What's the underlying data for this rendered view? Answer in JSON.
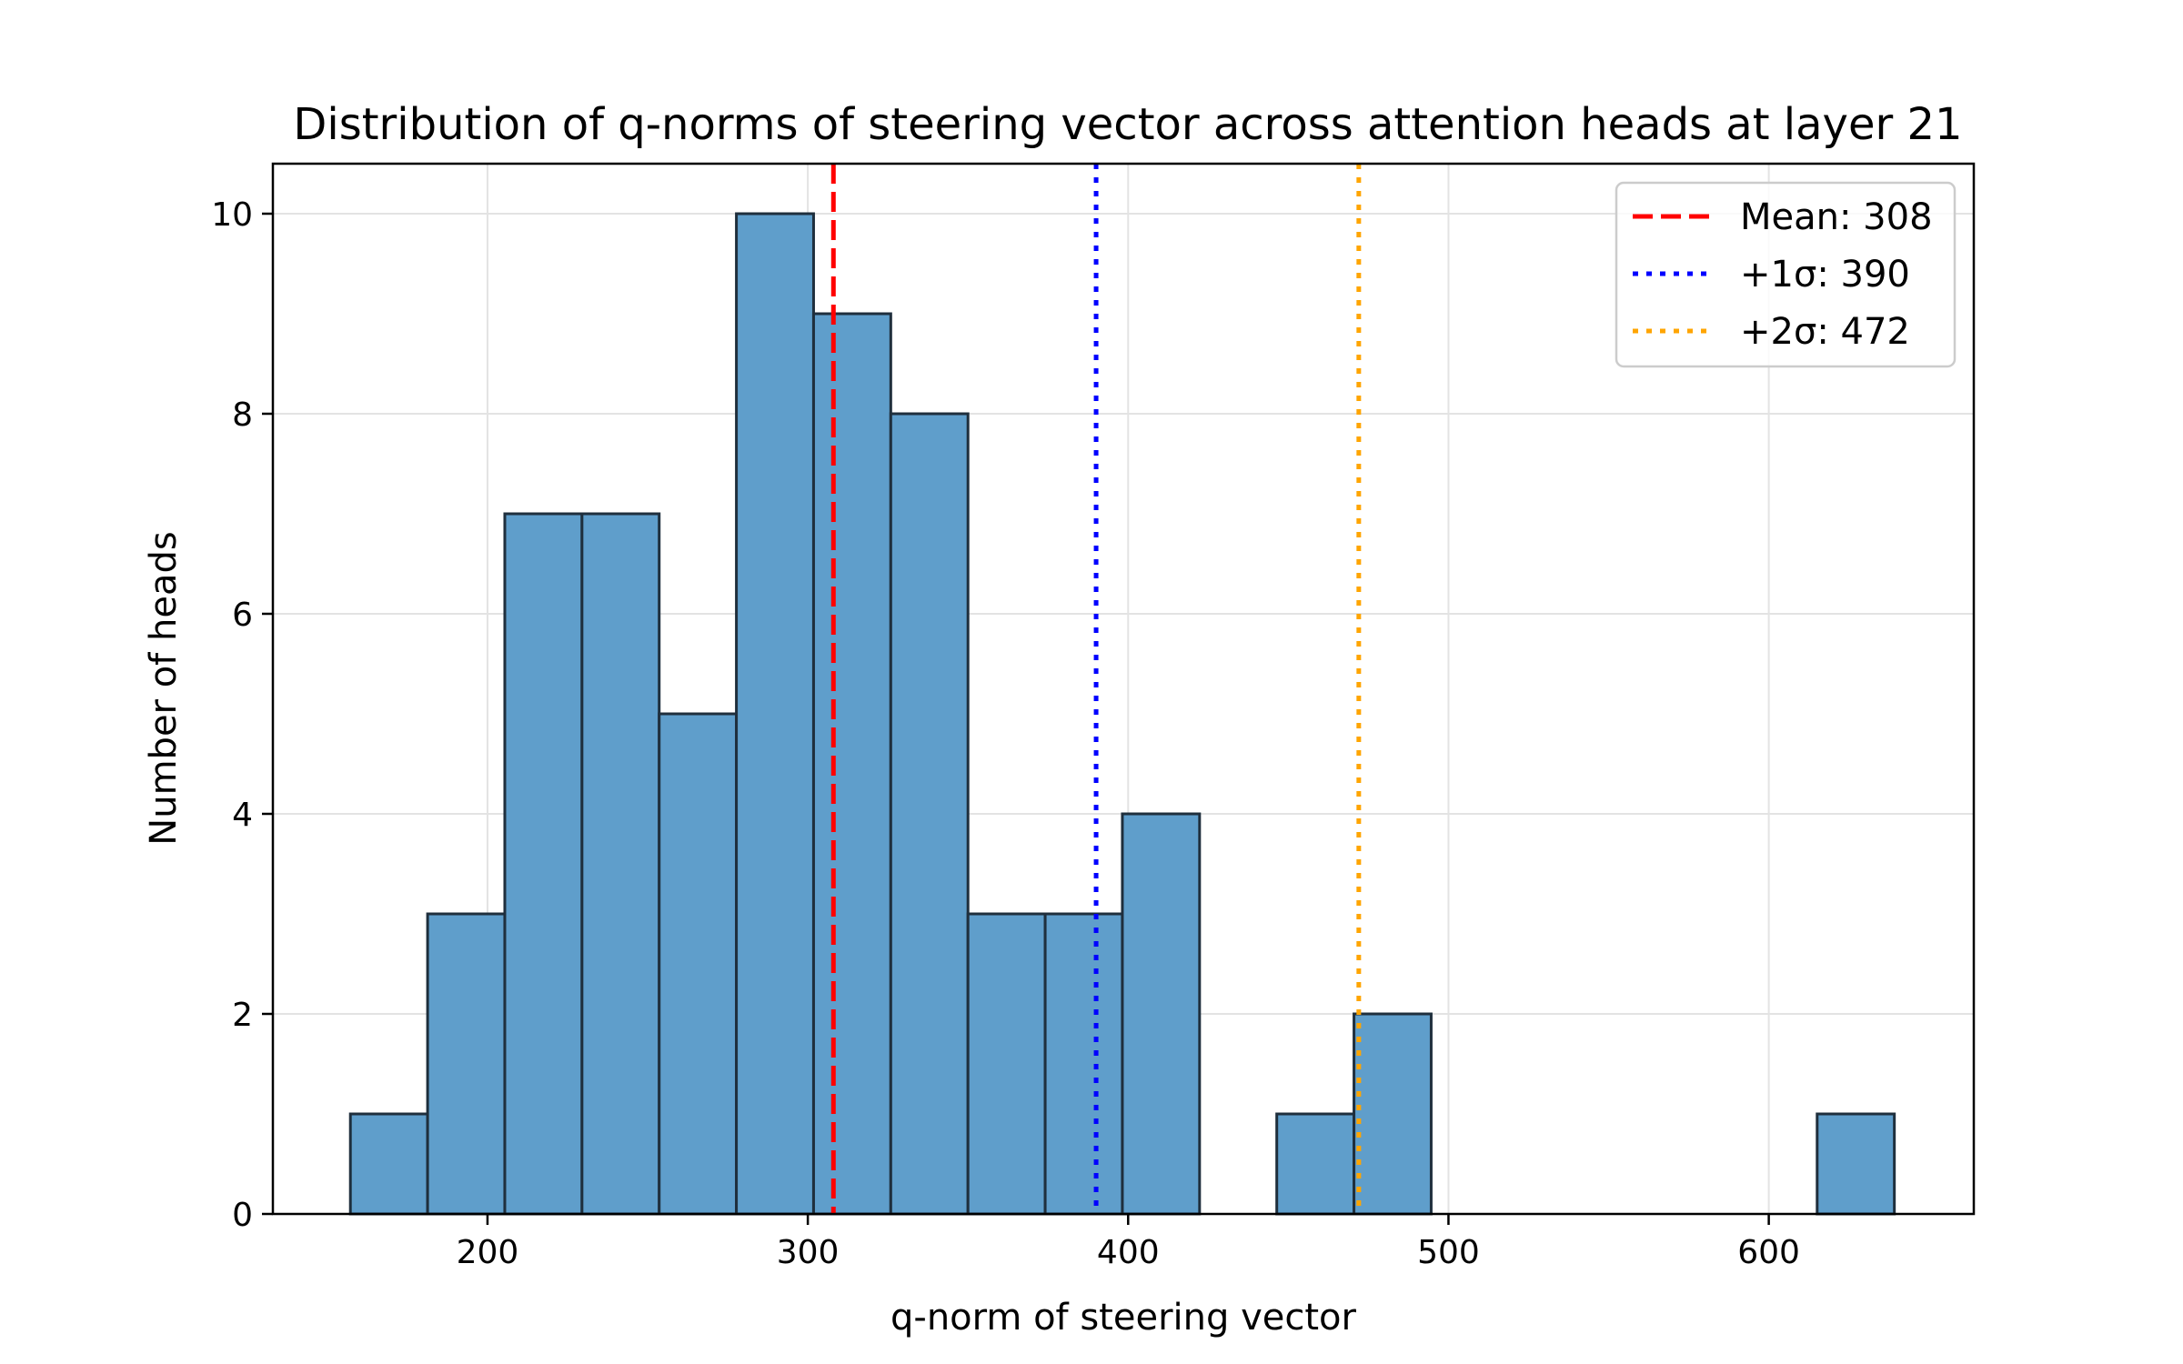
{
  "chart_data": {
    "type": "bar",
    "title": "Distribution of q-norms of steering vector across attention heads at layer 21",
    "xlabel": "q-norm of steering vector",
    "ylabel": "Number of heads",
    "xlim": [
      133,
      664
    ],
    "ylim": [
      0,
      10.5
    ],
    "xticks": [
      200,
      300,
      400,
      500,
      600
    ],
    "yticks": [
      0,
      2,
      4,
      6,
      8,
      10
    ],
    "grid": true,
    "bins": [
      {
        "x0": 157.2,
        "x1": 181.3,
        "count": 1
      },
      {
        "x0": 181.3,
        "x1": 205.4,
        "count": 3
      },
      {
        "x0": 205.4,
        "x1": 229.5,
        "count": 7
      },
      {
        "x0": 229.5,
        "x1": 253.6,
        "count": 7
      },
      {
        "x0": 253.6,
        "x1": 277.7,
        "count": 5
      },
      {
        "x0": 277.7,
        "x1": 301.8,
        "count": 10
      },
      {
        "x0": 301.8,
        "x1": 325.9,
        "count": 9
      },
      {
        "x0": 325.9,
        "x1": 350.0,
        "count": 8
      },
      {
        "x0": 350.0,
        "x1": 374.1,
        "count": 3
      },
      {
        "x0": 374.1,
        "x1": 398.2,
        "count": 3
      },
      {
        "x0": 398.2,
        "x1": 422.3,
        "count": 4
      },
      {
        "x0": 422.3,
        "x1": 446.4,
        "count": 0
      },
      {
        "x0": 446.4,
        "x1": 470.5,
        "count": 1
      },
      {
        "x0": 470.5,
        "x1": 494.6,
        "count": 2
      },
      {
        "x0": 494.6,
        "x1": 518.7,
        "count": 0
      },
      {
        "x0": 518.7,
        "x1": 542.8,
        "count": 0
      },
      {
        "x0": 542.8,
        "x1": 566.9,
        "count": 0
      },
      {
        "x0": 566.9,
        "x1": 591.0,
        "count": 0
      },
      {
        "x0": 591.0,
        "x1": 615.1,
        "count": 0
      },
      {
        "x0": 615.1,
        "x1": 639.2,
        "count": 1
      }
    ],
    "bar_color": "#5f9ecb",
    "bar_edge_color": "#1f2f3d",
    "reference_lines": [
      {
        "label": "Mean: 308",
        "value": 308,
        "color": "#ff0000",
        "style": "dashed"
      },
      {
        "label": "+1σ: 390",
        "value": 390,
        "color": "#0000ff",
        "style": "dotted"
      },
      {
        "label": "+2σ: 472",
        "value": 472,
        "color": "#ffa500",
        "style": "dotted"
      }
    ],
    "legend_position": "top-right"
  }
}
